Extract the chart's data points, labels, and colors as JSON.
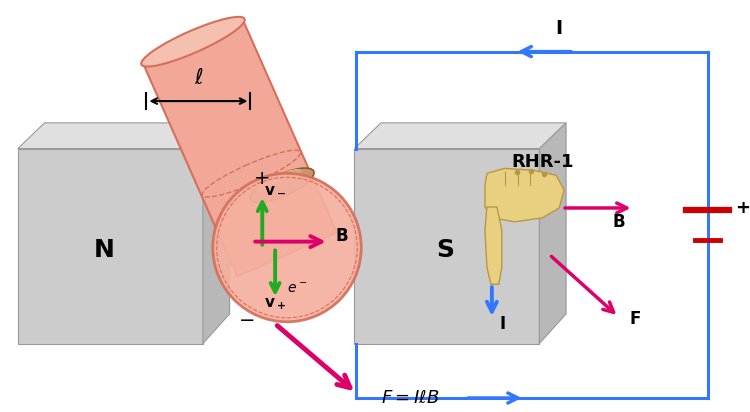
{
  "bg_color": "#ffffff",
  "cyl_fill": "#f2a898",
  "cyl_edge": "#d4705a",
  "cyl_top_fill": "#f5c0b0",
  "circle_fill": "#f5b0a0",
  "circle_edge": "#d4705a",
  "mag_front": "#cccccc",
  "mag_top": "#e2e2e2",
  "mag_side": "#b8b8b8",
  "arrow_B_color": "#dd006a",
  "arrow_v_color": "#22aa22",
  "arrow_I_color": "#3377ff",
  "arrow_F_color": "#dd006a",
  "circuit_color": "#3377ff",
  "battery_color": "#cc0000",
  "hand_fill": "#e8d080",
  "hand_edge": "#b89840",
  "N_label": "N",
  "S_label": "S",
  "I_label": "I",
  "B_label": "B",
  "F_label": "F",
  "RHR_label": "RHR-1",
  "ell_label": "ℓ"
}
